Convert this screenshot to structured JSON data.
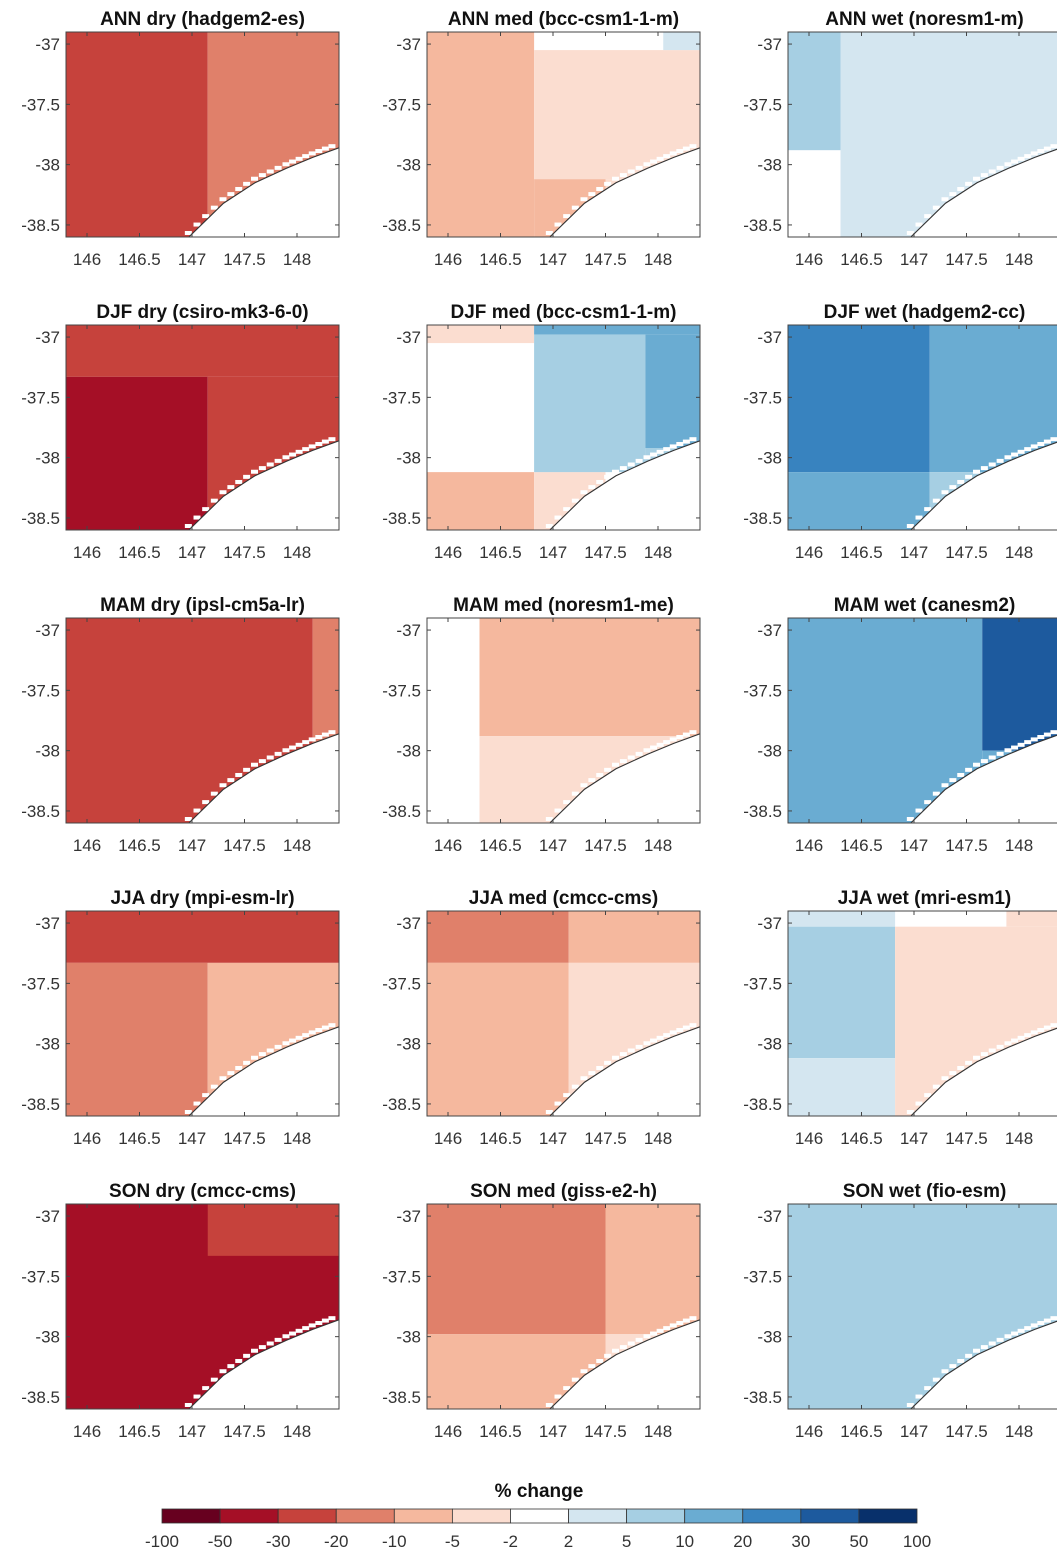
{
  "chart_data": {
    "type": "heatmap",
    "colorbar": {
      "title": "% change",
      "boundaries": [
        "-100",
        "-50",
        "-30",
        "-20",
        "-10",
        "-5",
        "-2",
        "2",
        "5",
        "10",
        "20",
        "30",
        "50",
        "100"
      ],
      "colors": [
        "#67001f",
        "#a50f26",
        "#c6423c",
        "#e0806a",
        "#f5b89e",
        "#fbddd0",
        "#ffffff",
        "#d4e6f0",
        "#a6cfe3",
        "#6aacd2",
        "#3883bf",
        "#1d5a9e",
        "#08306b"
      ]
    },
    "xlim": [
      145.8,
      148.4
    ],
    "ylim": [
      -38.6,
      -36.9
    ],
    "x_ticks": [
      "146",
      "146.5",
      "147",
      "147.5",
      "148"
    ],
    "y_ticks": [
      "-37",
      "-37.5",
      "-38",
      "-38.5"
    ],
    "coastline": [
      [
        146.97,
        -38.6
      ],
      [
        147.3,
        -38.32
      ],
      [
        147.6,
        -38.15
      ],
      [
        147.9,
        -38.03
      ],
      [
        148.15,
        -37.94
      ],
      [
        148.4,
        -37.86
      ]
    ],
    "panels": [
      {
        "title": "ANN dry (hadgem2-es)",
        "cells": [
          {
            "x": [
              145.8,
              147.15
            ],
            "y": [
              -38.6,
              -36.9
            ],
            "bin": 2
          },
          {
            "x": [
              147.15,
              148.4
            ],
            "y": [
              -38.6,
              -36.9
            ],
            "bin": 3
          }
        ]
      },
      {
        "title": "ANN med (bcc-csm1-1-m)",
        "cells": [
          {
            "x": [
              145.8,
              146.82
            ],
            "y": [
              -38.6,
              -36.9
            ],
            "bin": 4
          },
          {
            "x": [
              146.82,
              147.5
            ],
            "y": [
              -38.6,
              -38.12
            ],
            "bin": 4
          },
          {
            "x": [
              146.82,
              148.4
            ],
            "y": [
              -38.12,
              -37.05
            ],
            "bin": 5
          },
          {
            "x": [
              147.5,
              148.4
            ],
            "y": [
              -38.6,
              -38.12
            ],
            "bin": 5
          },
          {
            "x": [
              148.05,
              148.4
            ],
            "y": [
              -37.05,
              -36.9
            ],
            "bin": 7
          }
        ]
      },
      {
        "title": "ANN wet (noresm1-m)",
        "cells": [
          {
            "x": [
              145.8,
              146.3
            ],
            "y": [
              -37.88,
              -36.9
            ],
            "bin": 8
          },
          {
            "x": [
              146.3,
              148.4
            ],
            "y": [
              -38.6,
              -36.9
            ],
            "bin": 7
          }
        ]
      },
      {
        "title": "DJF dry (csiro-mk3-6-0)",
        "cells": [
          {
            "x": [
              145.8,
              148.4
            ],
            "y": [
              -37.33,
              -36.9
            ],
            "bin": 2
          },
          {
            "x": [
              145.8,
              147.15
            ],
            "y": [
              -38.6,
              -37.33
            ],
            "bin": 1
          },
          {
            "x": [
              147.15,
              148.4
            ],
            "y": [
              -38.6,
              -37.33
            ],
            "bin": 2
          }
        ]
      },
      {
        "title": "DJF med (bcc-csm1-1-m)",
        "cells": [
          {
            "x": [
              145.8,
              146.82
            ],
            "y": [
              -37.05,
              -36.9
            ],
            "bin": 5
          },
          {
            "x": [
              145.8,
              146.82
            ],
            "y": [
              -38.6,
              -38.12
            ],
            "bin": 4
          },
          {
            "x": [
              146.82,
              147.5
            ],
            "y": [
              -38.6,
              -38.12
            ],
            "bin": 5
          },
          {
            "x": [
              146.82,
              148.4
            ],
            "y": [
              -36.98,
              -36.9
            ],
            "bin": 9
          },
          {
            "x": [
              146.82,
              147.88
            ],
            "y": [
              -38.12,
              -36.98
            ],
            "bin": 8
          },
          {
            "x": [
              147.88,
              148.4
            ],
            "y": [
              -37.92,
              -36.98
            ],
            "bin": 9
          },
          {
            "x": [
              147.88,
              148.4
            ],
            "y": [
              -38.6,
              -37.92
            ],
            "bin": 8
          }
        ]
      },
      {
        "title": "DJF wet (hadgem2-cc)",
        "cells": [
          {
            "x": [
              145.8,
              147.15
            ],
            "y": [
              -38.12,
              -36.9
            ],
            "bin": 10
          },
          {
            "x": [
              145.8,
              147.15
            ],
            "y": [
              -38.6,
              -38.12
            ],
            "bin": 9
          },
          {
            "x": [
              147.15,
              148.4
            ],
            "y": [
              -38.12,
              -36.9
            ],
            "bin": 9
          },
          {
            "x": [
              147.15,
              147.65
            ],
            "y": [
              -38.6,
              -38.12
            ],
            "bin": 8
          },
          {
            "x": [
              147.65,
              148.4
            ],
            "y": [
              -38.6,
              -38.12
            ],
            "bin": 9
          }
        ]
      },
      {
        "title": "MAM dry (ipsl-cm5a-lr)",
        "cells": [
          {
            "x": [
              145.8,
              148.15
            ],
            "y": [
              -38.6,
              -36.9
            ],
            "bin": 2
          },
          {
            "x": [
              148.15,
              148.4
            ],
            "y": [
              -38.6,
              -36.9
            ],
            "bin": 3
          }
        ]
      },
      {
        "title": "MAM med (noresm1-me)",
        "cells": [
          {
            "x": [
              146.3,
              148.4
            ],
            "y": [
              -37.88,
              -36.9
            ],
            "bin": 4
          },
          {
            "x": [
              146.3,
              148.4
            ],
            "y": [
              -38.6,
              -37.88
            ],
            "bin": 5
          }
        ]
      },
      {
        "title": "MAM wet (canesm2)",
        "cells": [
          {
            "x": [
              145.8,
              147.65
            ],
            "y": [
              -38.6,
              -36.9
            ],
            "bin": 9
          },
          {
            "x": [
              147.65,
              148.4
            ],
            "y": [
              -38.0,
              -36.9
            ],
            "bin": 11
          },
          {
            "x": [
              147.65,
              148.4
            ],
            "y": [
              -38.6,
              -38.0
            ],
            "bin": 9
          }
        ]
      },
      {
        "title": "JJA dry (mpi-esm-lr)",
        "cells": [
          {
            "x": [
              145.8,
              148.4
            ],
            "y": [
              -37.33,
              -36.9
            ],
            "bin": 2
          },
          {
            "x": [
              145.8,
              147.15
            ],
            "y": [
              -38.6,
              -37.33
            ],
            "bin": 3
          },
          {
            "x": [
              147.15,
              148.4
            ],
            "y": [
              -38.6,
              -37.33
            ],
            "bin": 4
          }
        ]
      },
      {
        "title": "JJA med (cmcc-cms)",
        "cells": [
          {
            "x": [
              145.8,
              147.15
            ],
            "y": [
              -37.33,
              -36.9
            ],
            "bin": 3
          },
          {
            "x": [
              147.15,
              148.4
            ],
            "y": [
              -37.33,
              -36.9
            ],
            "bin": 4
          },
          {
            "x": [
              145.8,
              147.15
            ],
            "y": [
              -38.6,
              -37.33
            ],
            "bin": 4
          },
          {
            "x": [
              147.15,
              148.4
            ],
            "y": [
              -38.6,
              -37.33
            ],
            "bin": 5
          }
        ]
      },
      {
        "title": "JJA wet (mri-esm1)",
        "cells": [
          {
            "x": [
              145.8,
              146.82
            ],
            "y": [
              -37.03,
              -36.9
            ],
            "bin": 7
          },
          {
            "x": [
              145.8,
              146.82
            ],
            "y": [
              -38.12,
              -37.03
            ],
            "bin": 8
          },
          {
            "x": [
              145.8,
              146.82
            ],
            "y": [
              -38.6,
              -38.12
            ],
            "bin": 7
          },
          {
            "x": [
              146.82,
              148.4
            ],
            "y": [
              -38.6,
              -37.03
            ],
            "bin": 5
          },
          {
            "x": [
              147.88,
              148.4
            ],
            "y": [
              -37.03,
              -36.9
            ],
            "bin": 5
          }
        ]
      },
      {
        "title": "SON dry (cmcc-cms)",
        "cells": [
          {
            "x": [
              145.8,
              148.4
            ],
            "y": [
              -38.6,
              -36.9
            ],
            "bin": 1
          },
          {
            "x": [
              147.15,
              148.4
            ],
            "y": [
              -37.33,
              -36.9
            ],
            "bin": 2
          }
        ]
      },
      {
        "title": "SON med (giss-e2-h)",
        "cells": [
          {
            "x": [
              145.8,
              147.5
            ],
            "y": [
              -37.98,
              -36.9
            ],
            "bin": 3
          },
          {
            "x": [
              147.5,
              148.4
            ],
            "y": [
              -37.98,
              -36.9
            ],
            "bin": 4
          },
          {
            "x": [
              145.8,
              147.5
            ],
            "y": [
              -38.6,
              -37.98
            ],
            "bin": 4
          },
          {
            "x": [
              147.5,
              148.4
            ],
            "y": [
              -38.6,
              -37.98
            ],
            "bin": 5
          }
        ]
      },
      {
        "title": "SON wet (fio-esm)",
        "cells": [
          {
            "x": [
              145.8,
              148.4
            ],
            "y": [
              -38.6,
              -36.9
            ],
            "bin": 8
          }
        ]
      }
    ]
  }
}
